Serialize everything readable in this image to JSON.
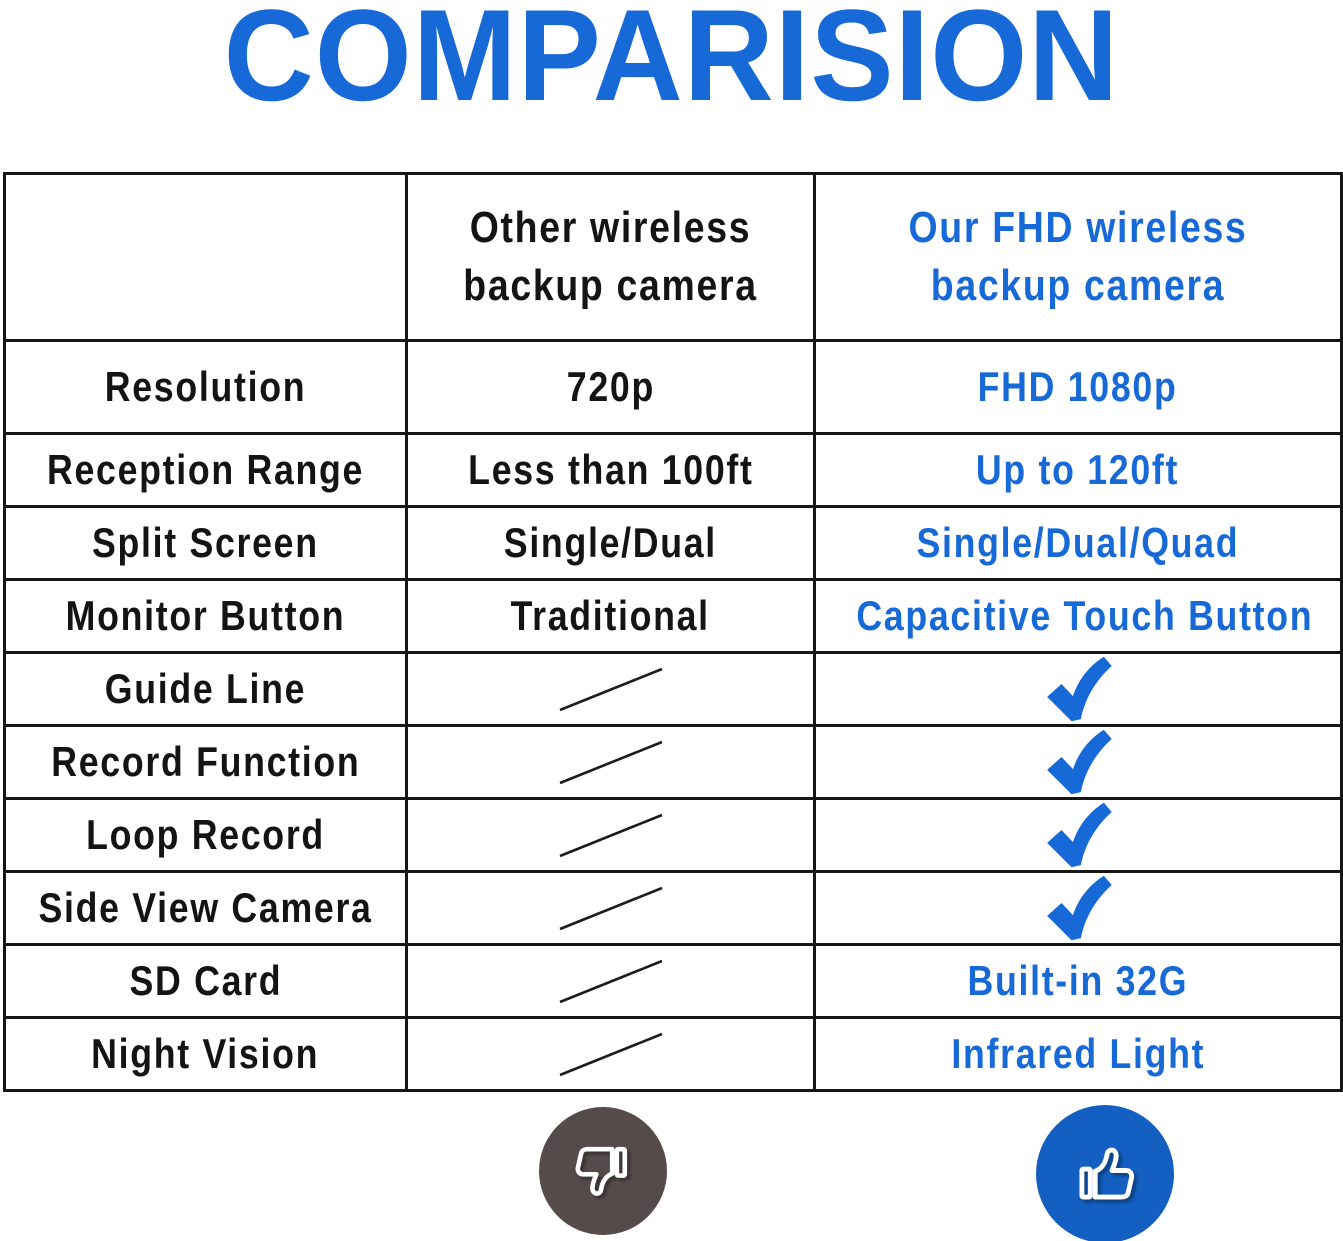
{
  "chart_data": {
    "type": "table",
    "title": "COMPARISION",
    "columns": [
      "",
      "Other wireless backup camera",
      "Our FHD wireless backup camera"
    ],
    "rows": [
      {
        "feature": "Resolution",
        "other": {
          "type": "text",
          "value": "720p"
        },
        "ours": {
          "type": "text",
          "value": "FHD 1080p"
        }
      },
      {
        "feature": "Reception Range",
        "other": {
          "type": "text",
          "value": "Less than 100ft"
        },
        "ours": {
          "type": "text",
          "value": "Up to 120ft"
        }
      },
      {
        "feature": "Split Screen",
        "other": {
          "type": "text",
          "value": "Single/Dual"
        },
        "ours": {
          "type": "text",
          "value": "Single/Dual/Quad"
        }
      },
      {
        "feature": "Monitor Button",
        "other": {
          "type": "text",
          "value": "Traditional"
        },
        "ours": {
          "type": "text",
          "value": "Capacitive Touch Button"
        }
      },
      {
        "feature": "Guide Line",
        "other": {
          "type": "slash"
        },
        "ours": {
          "type": "check"
        }
      },
      {
        "feature": "Record Function",
        "other": {
          "type": "slash"
        },
        "ours": {
          "type": "check"
        }
      },
      {
        "feature": "Loop Record",
        "other": {
          "type": "slash"
        },
        "ours": {
          "type": "check"
        }
      },
      {
        "feature": "Side View Camera",
        "other": {
          "type": "slash"
        },
        "ours": {
          "type": "check"
        }
      },
      {
        "feature": "SD Card",
        "other": {
          "type": "slash"
        },
        "ours": {
          "type": "text",
          "value": "Built-in 32G"
        }
      },
      {
        "feature": "Night Vision",
        "other": {
          "type": "slash"
        },
        "ours": {
          "type": "text",
          "value": "Infrared Light"
        }
      }
    ],
    "footer_icons": {
      "other_column": "thumbs-down",
      "ours_column": "thumbs-up"
    }
  },
  "colors": {
    "accent_blue": "#1769d8",
    "thumb_up_circle": "#135fc2",
    "thumb_down_circle": "#564b4b",
    "line_black": "#161616"
  }
}
